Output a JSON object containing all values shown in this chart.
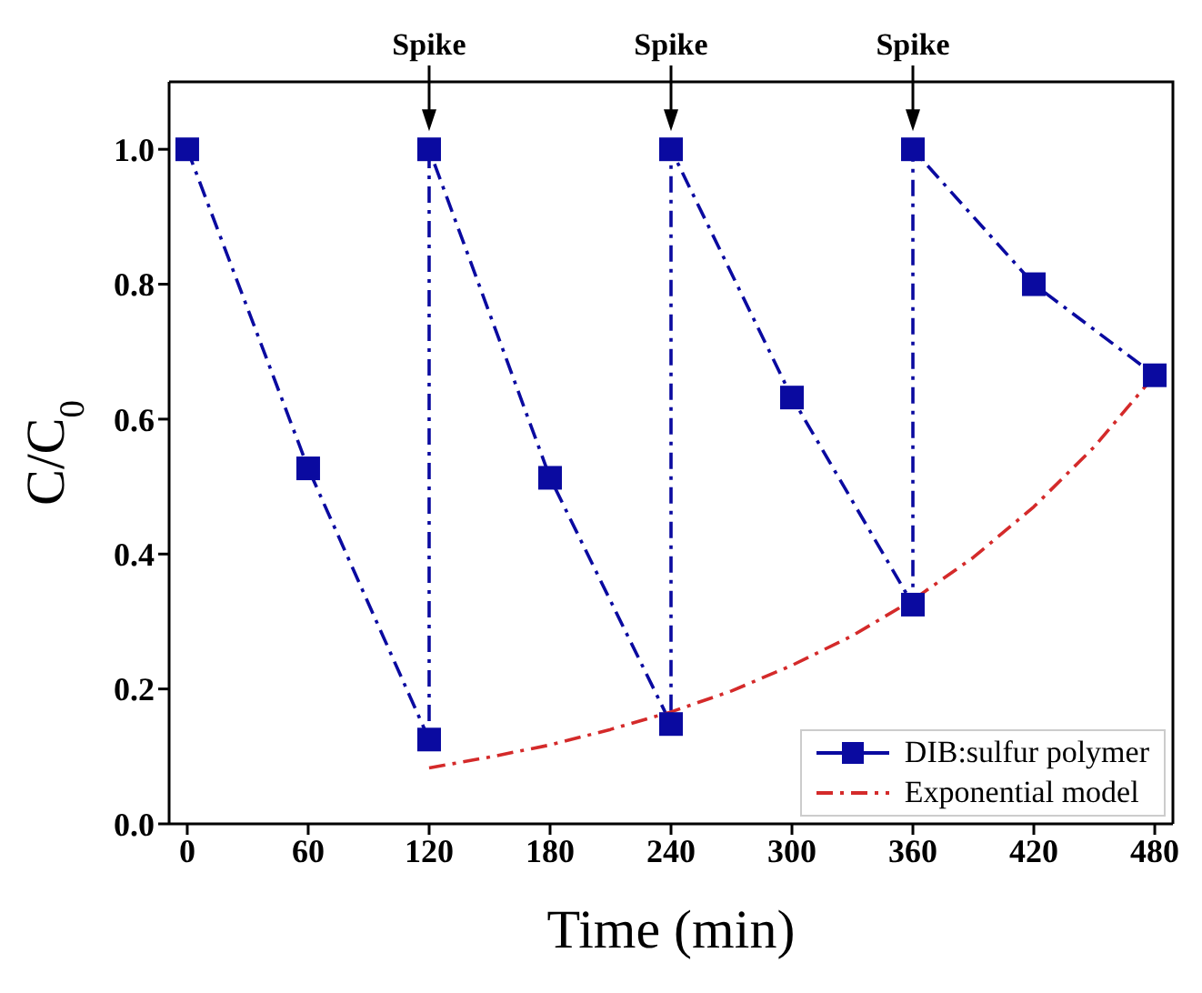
{
  "chart_data": {
    "type": "line",
    "xlabel": "Time (min)",
    "ylabel": "C/C$_{0}$",
    "series": [
      {
        "name": "DIB:sulfur polymer",
        "color": "#0a0aa0",
        "marker": "square",
        "line_style": "dashed",
        "x": [
          0,
          60,
          120,
          120,
          180,
          240,
          240,
          300,
          360,
          360,
          420,
          480
        ],
        "values": [
          1.0,
          0.527,
          0.125,
          1.0,
          0.513,
          0.148,
          1.0,
          0.632,
          0.325,
          1.0,
          0.8,
          0.665
        ]
      },
      {
        "name": "Exponential model",
        "color": "#d42a2a",
        "marker": "none",
        "line_style": "dashed",
        "x": [
          120,
          150,
          180,
          210,
          240,
          270,
          300,
          330,
          360,
          390,
          420,
          450,
          480
        ],
        "values": [
          0.083,
          0.099,
          0.117,
          0.14,
          0.166,
          0.197,
          0.235,
          0.279,
          0.332,
          0.395,
          0.47,
          0.559,
          0.665
        ]
      }
    ],
    "xlim": [
      -9,
      489
    ],
    "xticks": [
      0,
      60,
      120,
      180,
      240,
      300,
      360,
      420,
      480
    ],
    "ylim": [
      0,
      1.1
    ],
    "yticks": [
      {
        "value": 0,
        "label": "0.0"
      },
      {
        "value": 0.2,
        "label": "0.2"
      },
      {
        "value": 0.4,
        "label": "0.4"
      },
      {
        "value": 0.6,
        "label": "0.6"
      },
      {
        "value": 0.8,
        "label": "0.8"
      },
      {
        "value": 1.0,
        "label": "1.0"
      }
    ],
    "annotations": [
      {
        "text": "Spike",
        "x": 120,
        "y": 1.0
      },
      {
        "text": "Spike",
        "x": 240,
        "y": 1.0
      },
      {
        "text": "Spike",
        "x": 360,
        "y": 1.0
      }
    ],
    "legend": "bottom right",
    "grid": false
  }
}
